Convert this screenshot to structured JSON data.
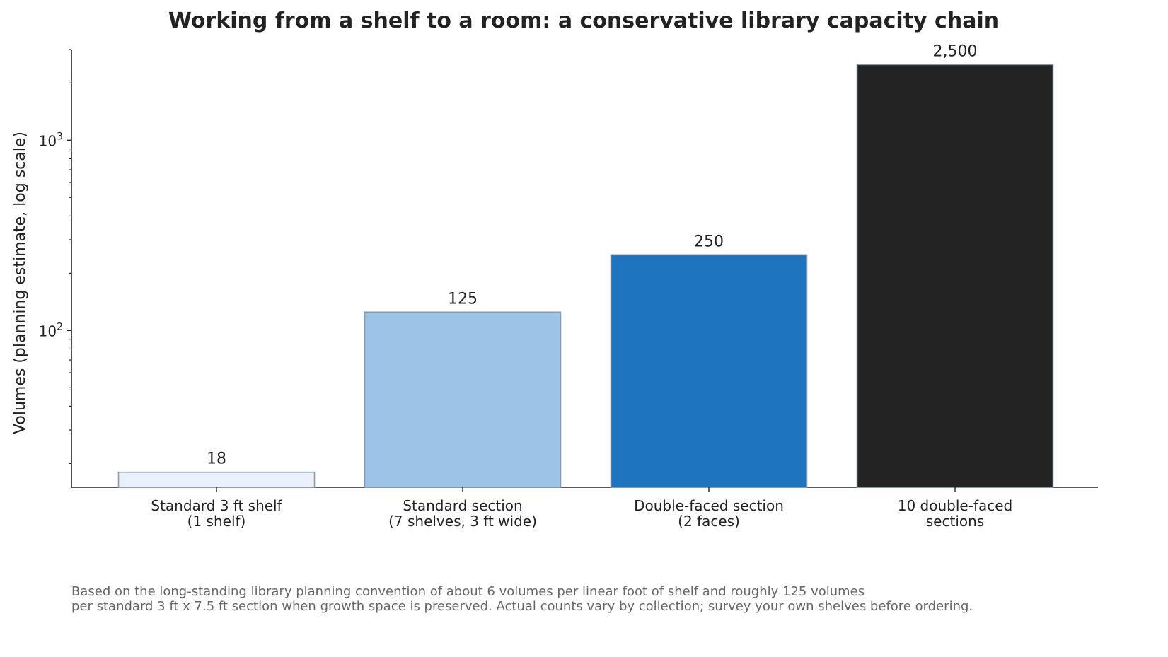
{
  "chart_data": {
    "type": "bar",
    "title": "Working from a shelf to a room: a conservative library capacity chain",
    "ylabel": "Volumes (planning estimate, log scale)",
    "xlabel": "",
    "yscale": "log",
    "ylim": [
      15,
      3000
    ],
    "grid": false,
    "categories": [
      [
        "Standard 3 ft shelf",
        "(1 shelf)"
      ],
      [
        "Standard section",
        "(7 shelves, 3 ft wide)"
      ],
      [
        "Double-faced section",
        "(2 faces)"
      ],
      [
        "10 double-faced",
        "sections"
      ]
    ],
    "values": [
      18,
      125,
      250,
      2500
    ],
    "value_labels": [
      "18",
      "125",
      "250",
      "2,500"
    ],
    "bar_colors": [
      "#eaf1fa",
      "#9dc3e6",
      "#1f74bf",
      "#232323"
    ],
    "bar_edge_color": "#8a9bb0",
    "y_major_ticks": [
      {
        "value": 100,
        "base": "10",
        "exp": "2"
      },
      {
        "value": 1000,
        "base": "10",
        "exp": "3"
      }
    ],
    "footnote": [
      "Based on the long-standing library planning convention of about 6 volumes per linear foot of shelf and roughly 125 volumes",
      "per standard 3 ft x 7.5 ft section when growth space is preserved. Actual counts vary by collection; survey your own shelves before ordering."
    ]
  }
}
